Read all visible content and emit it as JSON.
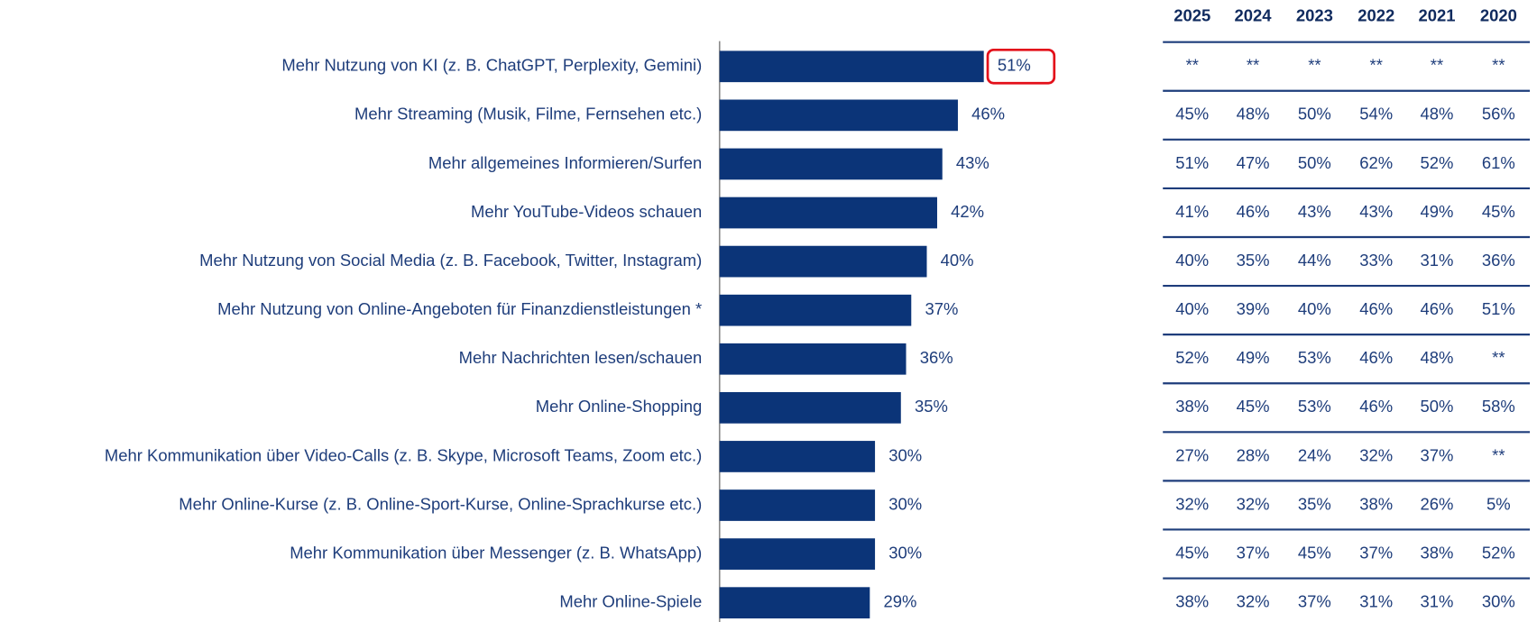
{
  "chart_data": {
    "type": "bar",
    "orientation": "horizontal",
    "color": "#0b3478",
    "categories": [
      "Mehr Nutzung von KI (z. B. ChatGPT, Perplexity, Gemini)",
      "Mehr Streaming (Musik, Filme, Fernsehen etc.)",
      "Mehr allgemeines Informieren/Surfen",
      "Mehr YouTube-Videos schauen",
      "Mehr Nutzung von Social Media (z. B. Facebook, Twitter, Instagram)",
      "Mehr Nutzung von Online-Angeboten für Finanzdienstleistungen *",
      "Mehr Nachrichten lesen/schauen",
      "Mehr Online-Shopping",
      "Mehr Kommunikation über Video-Calls (z. B. Skype, Microsoft Teams, Zoom etc.)",
      "Mehr Online-Kurse (z. B. Online-Sport-Kurse, Online-Sprachkurse etc.)",
      "Mehr Kommunikation über Messenger (z. B. WhatsApp)",
      "Mehr Online-Spiele"
    ],
    "values": [
      51,
      46,
      43,
      42,
      40,
      37,
      36,
      35,
      30,
      30,
      30,
      29
    ],
    "value_labels": [
      "51%",
      "46%",
      "43%",
      "42%",
      "40%",
      "37%",
      "36%",
      "35%",
      "30%",
      "30%",
      "30%",
      "29%"
    ]
  },
  "table": {
    "columns": [
      "2025",
      "2024",
      "2023",
      "2022",
      "2021",
      "2020"
    ],
    "rows": [
      [
        "**",
        "**",
        "**",
        "**",
        "**",
        "**"
      ],
      [
        "45%",
        "48%",
        "50%",
        "54%",
        "48%",
        "56%"
      ],
      [
        "51%",
        "47%",
        "50%",
        "62%",
        "52%",
        "61%"
      ],
      [
        "41%",
        "46%",
        "43%",
        "43%",
        "49%",
        "45%"
      ],
      [
        "40%",
        "35%",
        "44%",
        "33%",
        "31%",
        "36%"
      ],
      [
        "40%",
        "39%",
        "40%",
        "46%",
        "46%",
        "51%"
      ],
      [
        "52%",
        "49%",
        "53%",
        "46%",
        "48%",
        "**"
      ],
      [
        "38%",
        "45%",
        "53%",
        "46%",
        "50%",
        "58%"
      ],
      [
        "27%",
        "28%",
        "24%",
        "32%",
        "37%",
        "**"
      ],
      [
        "32%",
        "32%",
        "35%",
        "38%",
        "26%",
        "5%"
      ],
      [
        "45%",
        "37%",
        "45%",
        "37%",
        "38%",
        "52%"
      ],
      [
        "38%",
        "32%",
        "37%",
        "31%",
        "31%",
        "30%"
      ]
    ]
  }
}
